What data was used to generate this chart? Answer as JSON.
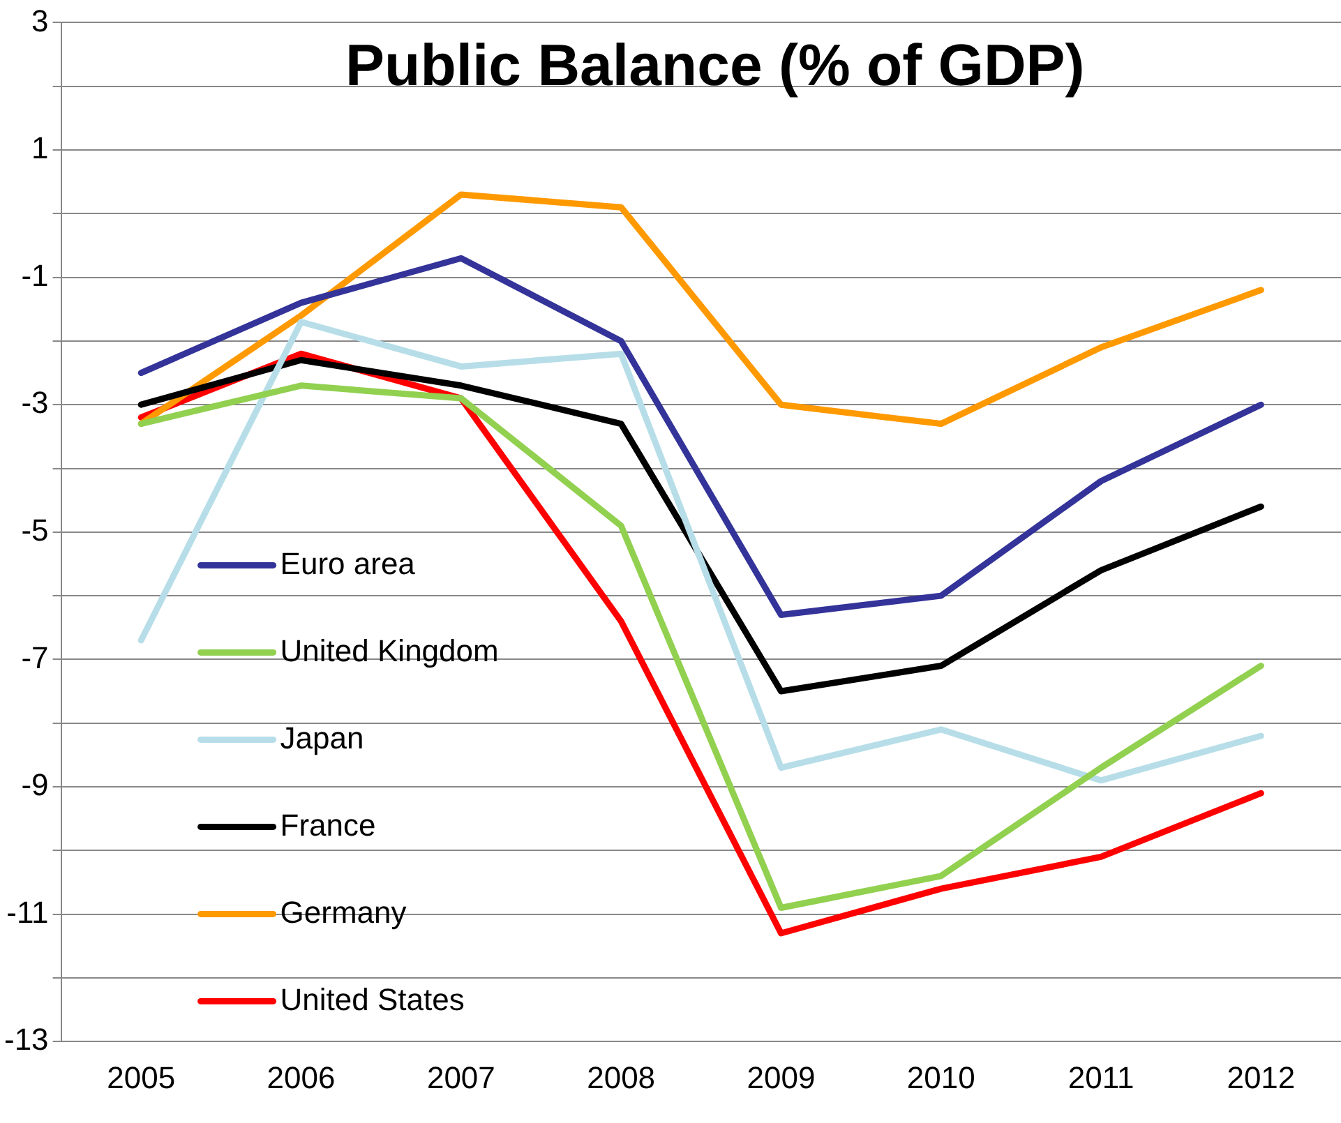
{
  "chart_data": {
    "type": "line",
    "title": "Public Balance (% of GDP)",
    "categories": [
      "2005",
      "2006",
      "2007",
      "2008",
      "2009",
      "2010",
      "2011",
      "2012"
    ],
    "series": [
      {
        "name": "Euro area",
        "color": "#333399",
        "values": [
          -2.5,
          -1.4,
          -0.7,
          -2.0,
          -6.3,
          -6.0,
          -4.2,
          -3.0
        ]
      },
      {
        "name": "United Kingdom",
        "color": "#92d050",
        "values": [
          -3.3,
          -2.7,
          -2.9,
          -4.9,
          -10.9,
          -10.4,
          -8.7,
          -7.1
        ]
      },
      {
        "name": "Japan",
        "color": "#b7dee8",
        "values": [
          -6.7,
          -1.7,
          -2.4,
          -2.2,
          -8.7,
          -8.1,
          -8.9,
          -8.2
        ]
      },
      {
        "name": "France",
        "color": "#000000",
        "values": [
          -3.0,
          -2.3,
          -2.7,
          -3.3,
          -7.5,
          -7.1,
          -5.6,
          -4.6
        ]
      },
      {
        "name": "Germany",
        "color": "#ff9900",
        "values": [
          -3.3,
          -1.6,
          0.3,
          0.1,
          -3.0,
          -3.3,
          -2.1,
          -1.2
        ]
      },
      {
        "name": "United States",
        "color": "#ff0000",
        "values": [
          -3.2,
          -2.2,
          -2.9,
          -6.4,
          -11.3,
          -10.6,
          -10.1,
          -9.1
        ]
      }
    ],
    "ylim": [
      -13,
      3
    ],
    "yticks": [
      -13,
      {
        "value": -12,
        "label": null
      },
      -11,
      {
        "value": -10,
        "label": null
      },
      -9,
      {
        "value": -8,
        "label": null
      },
      -7,
      {
        "value": -6,
        "label": null
      },
      -5,
      {
        "value": -4,
        "label": null
      },
      -3,
      {
        "value": -2,
        "label": null
      },
      -1,
      {
        "value": 0,
        "label": null
      },
      1,
      {
        "value": 2,
        "label": null
      },
      3
    ],
    "grid": "y",
    "legend": "left",
    "marker": "none",
    "line_style": "solid"
  }
}
